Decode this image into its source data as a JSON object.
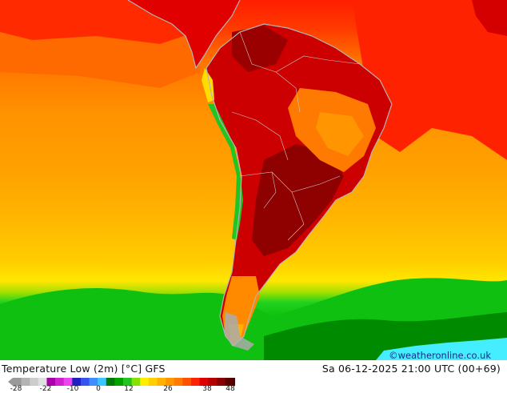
{
  "title": "Temperature Low (2m) [°C] GFS",
  "datetime": "Sa 06-12-2025 21:00 UTC (00+69)",
  "credit": "©weatheronline.co.uk",
  "legend": {
    "ticks": [
      "-28",
      "-22",
      "-10",
      "0",
      "12",
      "26",
      "38",
      "48"
    ],
    "colors": [
      "#9a9a9a",
      "#b4b4b4",
      "#cccccc",
      "#e0e0e0",
      "#aa00aa",
      "#d020d0",
      "#ee44ee",
      "#2020c0",
      "#3355ee",
      "#3f8dff",
      "#38c8ff",
      "#007a00",
      "#00a300",
      "#22c322",
      "#88e000",
      "#ffee00",
      "#ffd000",
      "#ffb300",
      "#ff9600",
      "#ff7a00",
      "#ff5200",
      "#ff2200",
      "#e00000",
      "#b40000",
      "#8a0000",
      "#560000"
    ]
  },
  "colors": {
    "ocean_north": "#ff1f00",
    "ocean_mid": "#ff9900",
    "ocean_south": "#ffd400",
    "cold_band": "#0ec40e",
    "ice": "#44eeff",
    "coast": "#b4b4b4",
    "land_hot": "#cc0000"
  }
}
